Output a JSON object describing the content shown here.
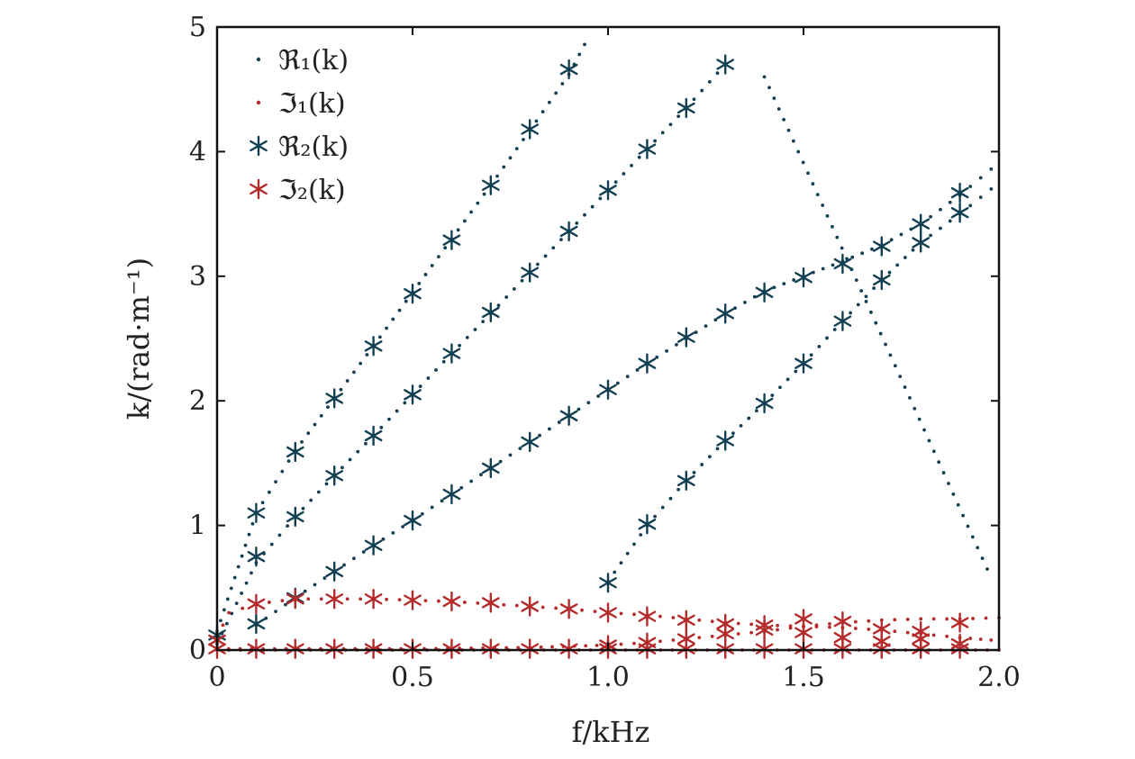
{
  "chart_data": {
    "type": "scatter",
    "title": "",
    "xlabel": "f/kHz",
    "ylabel": "k/(rad·m⁻¹)",
    "xlim": [
      0,
      2.0
    ],
    "ylim": [
      0,
      5
    ],
    "xticks": [
      0,
      0.5,
      1.0,
      1.5,
      2.0
    ],
    "xtick_labels": [
      "0",
      "0.5",
      "1.0",
      "1.5",
      "2.0"
    ],
    "yticks": [
      0,
      1,
      2,
      3,
      4,
      5
    ],
    "ytick_labels": [
      "0",
      "1",
      "2",
      "3",
      "4",
      "5"
    ],
    "grid": false,
    "legend_position": "top-left",
    "colors": {
      "blue": "#123f52",
      "red": "#b52a2a",
      "axis": "#111111"
    },
    "legend": [
      {
        "label": "ℜ₁(k)",
        "marker": "dot",
        "color": "#123f52"
      },
      {
        "label": "ℑ₁(k)",
        "marker": "dot",
        "color": "#b52a2a"
      },
      {
        "label": "ℜ₂(k)",
        "marker": "star",
        "color": "#123f52"
      },
      {
        "label": "ℑ₂(k)",
        "marker": "star",
        "color": "#b52a2a"
      }
    ],
    "dotted_series": [
      {
        "name": "ℜ₁ branch A",
        "color": "#123f52",
        "points": [
          [
            0,
            0.15
          ],
          [
            0.1,
            1.1
          ],
          [
            0.2,
            1.6
          ],
          [
            0.3,
            2.02
          ],
          [
            0.4,
            2.44
          ],
          [
            0.5,
            2.87
          ],
          [
            0.6,
            3.3
          ],
          [
            0.7,
            3.73
          ],
          [
            0.8,
            4.17
          ],
          [
            0.9,
            4.62
          ],
          [
            0.94,
            4.86
          ]
        ]
      },
      {
        "name": "ℜ₁ branch B",
        "color": "#123f52",
        "points": [
          [
            0,
            0.05
          ],
          [
            0.1,
            0.7
          ],
          [
            0.2,
            1.07
          ],
          [
            0.3,
            1.4
          ],
          [
            0.4,
            1.72
          ],
          [
            0.5,
            2.05
          ],
          [
            0.6,
            2.38
          ],
          [
            0.7,
            2.7
          ],
          [
            0.8,
            3.03
          ],
          [
            0.9,
            3.36
          ],
          [
            1.0,
            3.69
          ],
          [
            1.1,
            4.02
          ],
          [
            1.2,
            4.35
          ],
          [
            1.3,
            4.7
          ]
        ]
      },
      {
        "name": "ℜ₁ branch C",
        "color": "#123f52",
        "points": [
          [
            0.1,
            0.2
          ],
          [
            0.2,
            0.42
          ],
          [
            0.3,
            0.63
          ],
          [
            0.4,
            0.84
          ],
          [
            0.5,
            1.04
          ],
          [
            0.6,
            1.25
          ],
          [
            0.7,
            1.46
          ],
          [
            0.8,
            1.67
          ],
          [
            0.9,
            1.88
          ],
          [
            1.0,
            2.09
          ],
          [
            1.1,
            2.3
          ],
          [
            1.2,
            2.5
          ],
          [
            1.3,
            2.7
          ],
          [
            1.4,
            2.88
          ],
          [
            1.5,
            3.0
          ],
          [
            1.6,
            3.12
          ],
          [
            1.7,
            3.25
          ],
          [
            1.8,
            3.42
          ],
          [
            1.9,
            3.65
          ],
          [
            1.98,
            3.86
          ]
        ]
      },
      {
        "name": "ℜ₁ branch D",
        "color": "#123f52",
        "points": [
          [
            1.0,
            0.55
          ],
          [
            1.1,
            1.0
          ],
          [
            1.2,
            1.36
          ],
          [
            1.3,
            1.68
          ],
          [
            1.4,
            1.98
          ],
          [
            1.5,
            2.3
          ],
          [
            1.6,
            2.64
          ],
          [
            1.7,
            2.97
          ],
          [
            1.8,
            3.27
          ],
          [
            1.9,
            3.5
          ],
          [
            1.98,
            3.7
          ]
        ]
      },
      {
        "name": "ℜ₁ isolated",
        "color": "#123f52",
        "points": [
          [
            1.4,
            4.6
          ],
          [
            1.97,
            0.65
          ]
        ]
      },
      {
        "name": "ℑ₁ branch A",
        "color": "#b52a2a",
        "points": [
          [
            0,
            0.1
          ],
          [
            0.03,
            0.3
          ],
          [
            0.1,
            0.37
          ],
          [
            0.2,
            0.41
          ],
          [
            0.3,
            0.41
          ],
          [
            0.4,
            0.41
          ],
          [
            0.5,
            0.4
          ],
          [
            0.6,
            0.39
          ],
          [
            0.7,
            0.37
          ],
          [
            0.8,
            0.35
          ],
          [
            0.9,
            0.33
          ],
          [
            1.0,
            0.3
          ],
          [
            1.1,
            0.28
          ],
          [
            1.2,
            0.25
          ],
          [
            1.3,
            0.22
          ],
          [
            1.4,
            0.2
          ],
          [
            1.5,
            0.19
          ],
          [
            1.6,
            0.18
          ],
          [
            1.7,
            0.16
          ],
          [
            1.8,
            0.13
          ],
          [
            1.9,
            0.1
          ],
          [
            1.98,
            0.08
          ]
        ]
      },
      {
        "name": "ℑ₁ branch B",
        "color": "#b52a2a",
        "points": [
          [
            0,
            0.01
          ],
          [
            0.5,
            0.01
          ],
          [
            0.8,
            0.02
          ],
          [
            1.0,
            0.04
          ],
          [
            1.1,
            0.06
          ],
          [
            1.2,
            0.09
          ],
          [
            1.3,
            0.12
          ],
          [
            1.4,
            0.15
          ],
          [
            1.5,
            0.19
          ],
          [
            1.6,
            0.22
          ],
          [
            1.7,
            0.24
          ],
          [
            1.8,
            0.25
          ],
          [
            1.9,
            0.25
          ],
          [
            2.0,
            0.26
          ]
        ]
      },
      {
        "name": "ℑ₁ baseline",
        "color": "#b52a2a",
        "points": [
          [
            0,
            0.0
          ],
          [
            2.0,
            0.0
          ]
        ]
      }
    ],
    "star_series": [
      {
        "name": "ℜ₂(k)",
        "color": "#123f52",
        "points": [
          [
            0,
            0.12
          ],
          [
            0.1,
            1.1
          ],
          [
            0.2,
            1.59
          ],
          [
            0.3,
            2.02
          ],
          [
            0.4,
            2.44
          ],
          [
            0.5,
            2.86
          ],
          [
            0.6,
            3.29
          ],
          [
            0.7,
            3.73
          ],
          [
            0.8,
            4.18
          ],
          [
            0.9,
            4.66
          ],
          [
            0.1,
            0.75
          ],
          [
            0.2,
            1.07
          ],
          [
            0.3,
            1.4
          ],
          [
            0.4,
            1.72
          ],
          [
            0.5,
            2.05
          ],
          [
            0.6,
            2.38
          ],
          [
            0.7,
            2.71
          ],
          [
            0.8,
            3.03
          ],
          [
            0.9,
            3.36
          ],
          [
            1.0,
            3.69
          ],
          [
            1.1,
            4.02
          ],
          [
            1.2,
            4.35
          ],
          [
            1.3,
            4.7
          ],
          [
            0.1,
            0.21
          ],
          [
            0.2,
            0.42
          ],
          [
            0.3,
            0.63
          ],
          [
            0.4,
            0.84
          ],
          [
            0.5,
            1.04
          ],
          [
            0.6,
            1.25
          ],
          [
            0.7,
            1.46
          ],
          [
            0.8,
            1.67
          ],
          [
            0.9,
            1.88
          ],
          [
            1.0,
            2.09
          ],
          [
            1.1,
            2.3
          ],
          [
            1.2,
            2.51
          ],
          [
            1.3,
            2.7
          ],
          [
            1.4,
            2.87
          ],
          [
            1.5,
            2.99
          ],
          [
            1.6,
            3.1
          ],
          [
            1.7,
            3.24
          ],
          [
            1.8,
            3.42
          ],
          [
            1.9,
            3.67
          ],
          [
            1.0,
            0.54
          ],
          [
            1.1,
            1.01
          ],
          [
            1.2,
            1.36
          ],
          [
            1.3,
            1.68
          ],
          [
            1.4,
            1.98
          ],
          [
            1.5,
            2.3
          ],
          [
            1.6,
            2.64
          ],
          [
            1.7,
            2.97
          ],
          [
            1.8,
            3.27
          ],
          [
            1.9,
            3.51
          ]
        ]
      },
      {
        "name": "ℑ₂(k)",
        "color": "#b52a2a",
        "points": [
          [
            0,
            0.08
          ],
          [
            0.1,
            0.37
          ],
          [
            0.2,
            0.41
          ],
          [
            0.3,
            0.41
          ],
          [
            0.4,
            0.41
          ],
          [
            0.5,
            0.4
          ],
          [
            0.6,
            0.39
          ],
          [
            0.7,
            0.38
          ],
          [
            0.8,
            0.35
          ],
          [
            0.9,
            0.33
          ],
          [
            1.0,
            0.3
          ],
          [
            1.1,
            0.27
          ],
          [
            1.2,
            0.24
          ],
          [
            1.3,
            0.21
          ],
          [
            1.4,
            0.2
          ],
          [
            1.5,
            0.25
          ],
          [
            1.6,
            0.23
          ],
          [
            1.7,
            0.17
          ],
          [
            1.8,
            0.15
          ],
          [
            1.9,
            0.22
          ],
          [
            1.0,
            0.04
          ],
          [
            1.1,
            0.06
          ],
          [
            1.2,
            0.09
          ],
          [
            1.3,
            0.13
          ],
          [
            1.4,
            0.16
          ],
          [
            1.5,
            0.14
          ],
          [
            1.6,
            0.1
          ],
          [
            1.7,
            0.07
          ],
          [
            1.8,
            0.09
          ],
          [
            1.9,
            0.05
          ],
          [
            0,
            0.01
          ],
          [
            0.1,
            0.01
          ],
          [
            0.2,
            0.01
          ],
          [
            0.3,
            0.01
          ],
          [
            0.4,
            0.01
          ],
          [
            0.5,
            0.01
          ],
          [
            0.6,
            0.01
          ],
          [
            0.7,
            0.01
          ],
          [
            0.8,
            0.01
          ],
          [
            0.9,
            0.01
          ],
          [
            1.0,
            0.01
          ],
          [
            1.1,
            0.01
          ],
          [
            1.2,
            0.01
          ],
          [
            1.3,
            0.01
          ],
          [
            1.4,
            0.01
          ],
          [
            1.5,
            0.01
          ],
          [
            1.6,
            0.01
          ],
          [
            1.7,
            0.01
          ],
          [
            1.8,
            0.01
          ],
          [
            1.9,
            0.01
          ]
        ]
      }
    ]
  }
}
